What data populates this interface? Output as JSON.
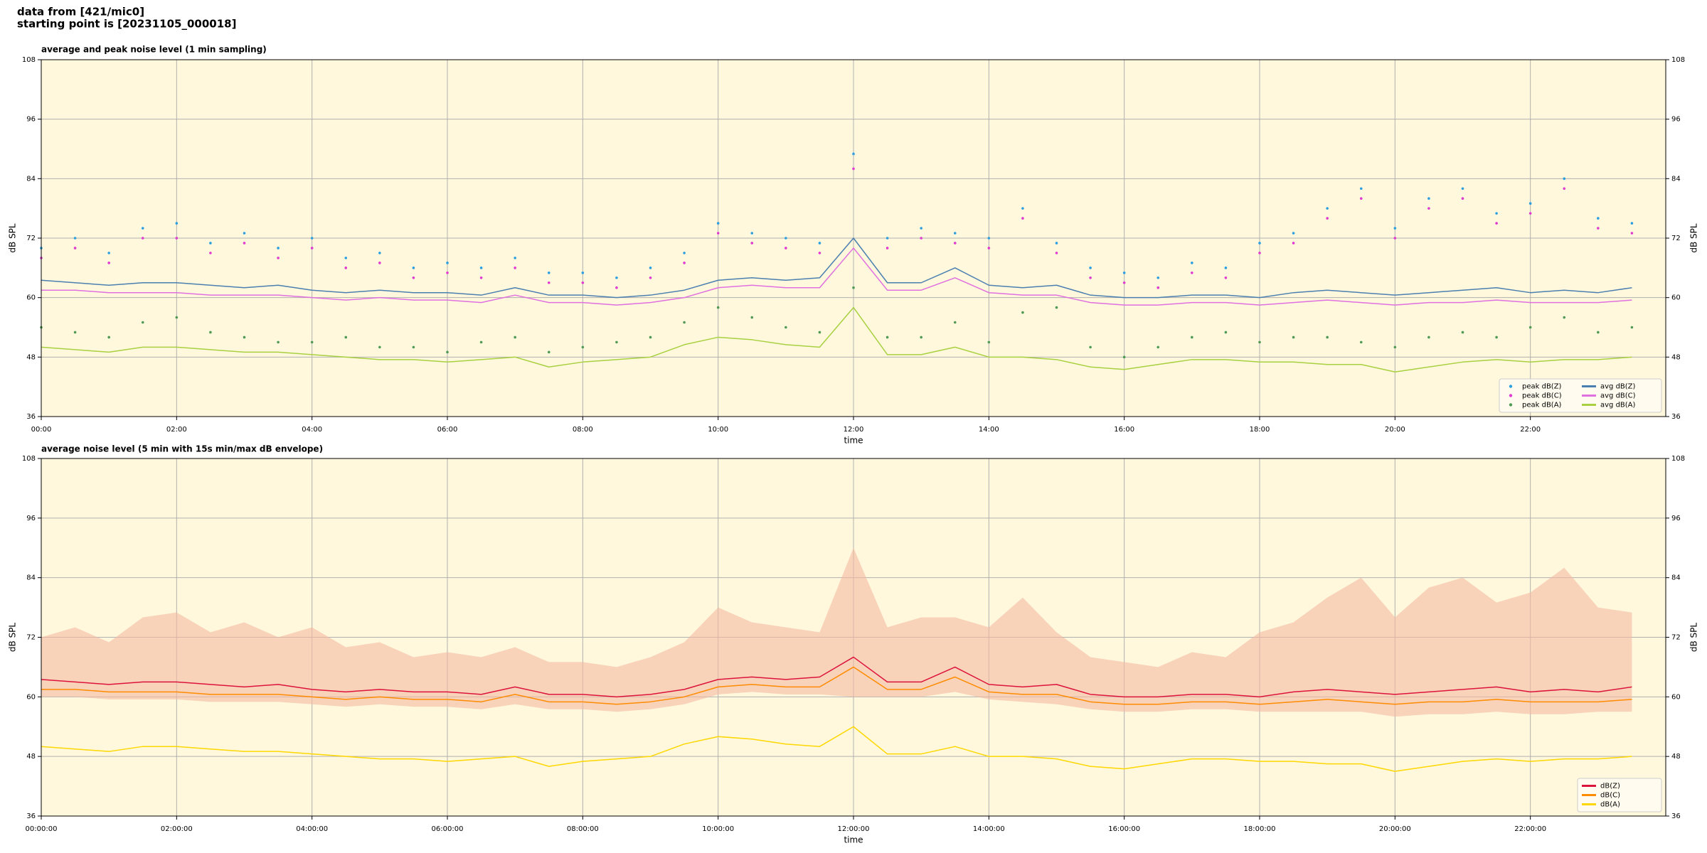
{
  "header": [
    "data from [421/mic0]",
    "starting point is [20231105_000018]"
  ],
  "chart_data": [
    {
      "type": "line",
      "title": "average and peak noise level (1 min sampling)",
      "xlabel": "time",
      "ylabel": "dB SPL",
      "xlim": [
        0,
        24
      ],
      "ylim": [
        36,
        108
      ],
      "xticks": [
        {
          "value": 0,
          "label": "00:00"
        },
        {
          "value": 2,
          "label": "02:00"
        },
        {
          "value": 4,
          "label": "04:00"
        },
        {
          "value": 6,
          "label": "06:00"
        },
        {
          "value": 8,
          "label": "08:00"
        },
        {
          "value": 10,
          "label": "10:00"
        },
        {
          "value": 12,
          "label": "12:00"
        },
        {
          "value": 14,
          "label": "14:00"
        },
        {
          "value": 16,
          "label": "16:00"
        },
        {
          "value": 18,
          "label": "18:00"
        },
        {
          "value": 20,
          "label": "20:00"
        },
        {
          "value": 22,
          "label": "22:00"
        }
      ],
      "yticks": [
        36,
        48,
        60,
        72,
        84,
        96,
        108
      ],
      "grid": true,
      "background": "#fff8dc",
      "legend": "lower right",
      "legend_columns": 2,
      "x": [
        0,
        0.5,
        1,
        1.5,
        2,
        2.5,
        3,
        3.5,
        4,
        4.5,
        5,
        5.5,
        6,
        6.5,
        7,
        7.5,
        8,
        8.5,
        9,
        9.5,
        10,
        10.5,
        11,
        11.5,
        12,
        12.5,
        13,
        13.5,
        14,
        14.5,
        15,
        15.5,
        16,
        16.5,
        17,
        17.5,
        18,
        18.5,
        19,
        19.5,
        20,
        20.5,
        21,
        21.5,
        22,
        22.5,
        23,
        23.5
      ],
      "series": [
        {
          "name": "peak dB(Z)",
          "color": "#2c9fe0",
          "style": "scatter",
          "values": [
            70,
            72,
            69,
            74,
            75,
            71,
            73,
            70,
            72,
            68,
            69,
            66,
            67,
            66,
            68,
            65,
            65,
            64,
            66,
            69,
            75,
            73,
            72,
            71,
            89,
            72,
            74,
            73,
            72,
            78,
            71,
            66,
            65,
            64,
            67,
            66,
            71,
            73,
            78,
            82,
            74,
            80,
            82,
            77,
            79,
            84,
            76,
            75
          ]
        },
        {
          "name": "peak dB(C)",
          "color": "#e03ad0",
          "style": "scatter",
          "values": [
            68,
            70,
            67,
            72,
            72,
            69,
            71,
            68,
            70,
            66,
            67,
            64,
            65,
            64,
            66,
            63,
            63,
            62,
            64,
            67,
            73,
            71,
            70,
            69,
            86,
            70,
            72,
            71,
            70,
            76,
            69,
            64,
            63,
            62,
            65,
            64,
            69,
            71,
            76,
            80,
            72,
            78,
            80,
            75,
            77,
            82,
            74,
            73
          ]
        },
        {
          "name": "peak dB(A)",
          "color": "#4f9a55",
          "style": "scatter",
          "values": [
            54,
            53,
            52,
            55,
            56,
            53,
            52,
            51,
            51,
            52,
            50,
            50,
            49,
            51,
            52,
            49,
            50,
            51,
            52,
            55,
            58,
            56,
            54,
            53,
            62,
            52,
            52,
            55,
            51,
            57,
            58,
            50,
            48,
            50,
            52,
            53,
            51,
            52,
            52,
            51,
            50,
            52,
            53,
            52,
            54,
            56,
            53,
            54
          ]
        },
        {
          "name": "avg dB(Z)",
          "color": "#4a7fb0",
          "style": "line",
          "values": [
            63.5,
            63,
            62.5,
            63,
            63,
            62.5,
            62,
            62.5,
            61.5,
            61,
            61.5,
            61,
            61,
            60.5,
            62,
            60.5,
            60.5,
            60,
            60.5,
            61.5,
            63.5,
            64,
            63.5,
            64,
            72,
            63,
            63,
            66,
            62.5,
            62,
            62.5,
            60.5,
            60,
            60,
            60.5,
            60.5,
            60,
            61,
            61.5,
            61,
            60.5,
            61,
            61.5,
            62,
            61,
            61.5,
            61,
            62
          ]
        },
        {
          "name": "avg dB(C)",
          "color": "#e070e0",
          "style": "line",
          "values": [
            61.5,
            61.5,
            61,
            61,
            61,
            60.5,
            60.5,
            60.5,
            60,
            59.5,
            60,
            59.5,
            59.5,
            59,
            60.5,
            59,
            59,
            58.5,
            59,
            60,
            62,
            62.5,
            62,
            62,
            70,
            61.5,
            61.5,
            64,
            61,
            60.5,
            60.5,
            59,
            58.5,
            58.5,
            59,
            59,
            58.5,
            59,
            59.5,
            59,
            58.5,
            59,
            59,
            59.5,
            59,
            59,
            59,
            59.5
          ]
        },
        {
          "name": "avg dB(A)",
          "color": "#a8d040",
          "style": "line",
          "values": [
            50,
            49.5,
            49,
            50,
            50,
            49.5,
            49,
            49,
            48.5,
            48,
            47.5,
            47.5,
            47,
            47.5,
            48,
            46,
            47,
            47.5,
            48,
            50.5,
            52,
            51.5,
            50.5,
            50,
            58,
            48.5,
            48.5,
            50,
            48,
            48,
            47.5,
            46,
            45.5,
            46.5,
            47.5,
            47.5,
            47,
            47,
            46.5,
            46.5,
            45,
            46,
            47,
            47.5,
            47,
            47.5,
            47.5,
            48
          ]
        }
      ]
    },
    {
      "type": "line",
      "title": "average noise level (5 min with 15s min/max dB envelope)",
      "xlabel": "time",
      "ylabel": "dB SPL",
      "xlim": [
        0,
        24
      ],
      "ylim": [
        36,
        108
      ],
      "xticks": [
        {
          "value": 0,
          "label": "00:00:00"
        },
        {
          "value": 2,
          "label": "02:00:00"
        },
        {
          "value": 4,
          "label": "04:00:00"
        },
        {
          "value": 6,
          "label": "06:00:00"
        },
        {
          "value": 8,
          "label": "08:00:00"
        },
        {
          "value": 10,
          "label": "10:00:00"
        },
        {
          "value": 12,
          "label": "12:00:00"
        },
        {
          "value": 14,
          "label": "14:00:00"
        },
        {
          "value": 16,
          "label": "16:00:00"
        },
        {
          "value": 18,
          "label": "18:00:00"
        },
        {
          "value": 20,
          "label": "20:00:00"
        },
        {
          "value": 22,
          "label": "22:00:00"
        }
      ],
      "yticks": [
        36,
        48,
        60,
        72,
        84,
        96,
        108
      ],
      "grid": true,
      "background": "#fff8dc",
      "legend": "lower right",
      "legend_columns": 1,
      "x": [
        0,
        0.5,
        1,
        1.5,
        2,
        2.5,
        3,
        3.5,
        4,
        4.5,
        5,
        5.5,
        6,
        6.5,
        7,
        7.5,
        8,
        8.5,
        9,
        9.5,
        10,
        10.5,
        11,
        11.5,
        12,
        12.5,
        13,
        13.5,
        14,
        14.5,
        15,
        15.5,
        16,
        16.5,
        17,
        17.5,
        18,
        18.5,
        19,
        19.5,
        20,
        20.5,
        21,
        21.5,
        22,
        22.5,
        23,
        23.5
      ],
      "envelope": {
        "color": "#f5b9a3",
        "lower": [
          60,
          60,
          59.5,
          59.5,
          59.5,
          59,
          59,
          59,
          58.5,
          58,
          58.5,
          58,
          58,
          57.5,
          58.5,
          57.5,
          57.5,
          57,
          57.5,
          58.5,
          60.5,
          61,
          60.5,
          60.5,
          60,
          60,
          60,
          61,
          59.5,
          59,
          58.5,
          57.5,
          57,
          57,
          57.5,
          57.5,
          57,
          57,
          57,
          57,
          56,
          56.5,
          56.5,
          57,
          56.5,
          56.5,
          57,
          57
        ],
        "upper": [
          72,
          74,
          71,
          76,
          77,
          73,
          75,
          72,
          74,
          70,
          71,
          68,
          69,
          68,
          70,
          67,
          67,
          66,
          68,
          71,
          78,
          75,
          74,
          73,
          90,
          74,
          76,
          76,
          74,
          80,
          73,
          68,
          67,
          66,
          69,
          68,
          73,
          75,
          80,
          84,
          76,
          82,
          84,
          79,
          81,
          86,
          78,
          77
        ]
      },
      "series": [
        {
          "name": "dB(Z)",
          "color": "#dc143c",
          "style": "line",
          "values": [
            63.5,
            63,
            62.5,
            63,
            63,
            62.5,
            62,
            62.5,
            61.5,
            61,
            61.5,
            61,
            61,
            60.5,
            62,
            60.5,
            60.5,
            60,
            60.5,
            61.5,
            63.5,
            64,
            63.5,
            64,
            68,
            63,
            63,
            66,
            62.5,
            62,
            62.5,
            60.5,
            60,
            60,
            60.5,
            60.5,
            60,
            61,
            61.5,
            61,
            60.5,
            61,
            61.5,
            62,
            61,
            61.5,
            61,
            62
          ]
        },
        {
          "name": "dB(C)",
          "color": "#ff8c00",
          "style": "line",
          "values": [
            61.5,
            61.5,
            61,
            61,
            61,
            60.5,
            60.5,
            60.5,
            60,
            59.5,
            60,
            59.5,
            59.5,
            59,
            60.5,
            59,
            59,
            58.5,
            59,
            60,
            62,
            62.5,
            62,
            62,
            66,
            61.5,
            61.5,
            64,
            61,
            60.5,
            60.5,
            59,
            58.5,
            58.5,
            59,
            59,
            58.5,
            59,
            59.5,
            59,
            58.5,
            59,
            59,
            59.5,
            59,
            59,
            59,
            59.5
          ]
        },
        {
          "name": "dB(A)",
          "color": "#ffd700",
          "style": "line",
          "values": [
            50,
            49.5,
            49,
            50,
            50,
            49.5,
            49,
            49,
            48.5,
            48,
            47.5,
            47.5,
            47,
            47.5,
            48,
            46,
            47,
            47.5,
            48,
            50.5,
            52,
            51.5,
            50.5,
            50,
            54,
            48.5,
            48.5,
            50,
            48,
            48,
            47.5,
            46,
            45.5,
            46.5,
            47.5,
            47.5,
            47,
            47,
            46.5,
            46.5,
            45,
            46,
            47,
            47.5,
            47,
            47.5,
            47.5,
            48
          ]
        }
      ]
    }
  ]
}
